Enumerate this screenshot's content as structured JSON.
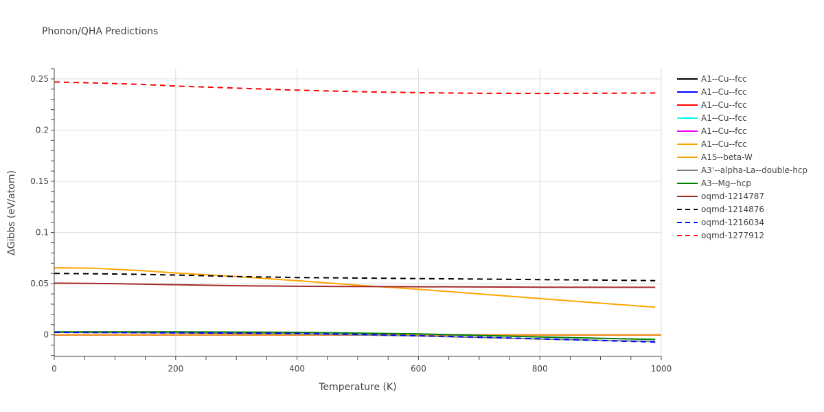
{
  "chart_data": {
    "type": "line",
    "title": "Phonon/QHA Predictions",
    "xlabel": "Temperature (K)",
    "ylabel": "ΔGibbs (eV/atom)",
    "xlim": [
      0,
      1000
    ],
    "ylim": [
      -0.021,
      0.26
    ],
    "xticks": [
      0,
      200,
      400,
      600,
      800,
      1000
    ],
    "xtick_labels": [
      "0",
      "200",
      "400",
      "600",
      "800",
      "1000"
    ],
    "yticks": [
      0,
      0.05,
      0.1,
      0.15,
      0.2,
      0.25
    ],
    "ytick_labels": [
      "0",
      "0.05",
      "0.1",
      "0.15",
      "0.2",
      "0.25"
    ],
    "grid": true,
    "legend_position": "right",
    "series": [
      {
        "name": "A1--Cu--fcc",
        "color": "#000000",
        "dash": "solid",
        "x": [
          0,
          1000
        ],
        "y": [
          0,
          0
        ]
      },
      {
        "name": "A1--Cu--fcc",
        "color": "#0000ff",
        "dash": "solid",
        "x": [
          0,
          1000
        ],
        "y": [
          0,
          0
        ]
      },
      {
        "name": "A1--Cu--fcc",
        "color": "#ff0000",
        "dash": "solid",
        "x": [
          0,
          1000
        ],
        "y": [
          0,
          0
        ]
      },
      {
        "name": "A1--Cu--fcc",
        "color": "#00ffff",
        "dash": "solid",
        "x": [
          0,
          1000
        ],
        "y": [
          0,
          0
        ]
      },
      {
        "name": "A1--Cu--fcc",
        "color": "#ff00ff",
        "dash": "solid",
        "x": [
          0,
          1000
        ],
        "y": [
          0,
          0
        ]
      },
      {
        "name": "A1--Cu--fcc",
        "color": "#ffa500",
        "dash": "solid",
        "x": [
          0,
          1000
        ],
        "y": [
          0,
          0
        ]
      },
      {
        "name": "A15--beta-W",
        "color": "#ffa500",
        "dash": "solid",
        "x": [
          0,
          70,
          150,
          200,
          300,
          400,
          500,
          600,
          700,
          800,
          900,
          990
        ],
        "y": [
          0.0655,
          0.065,
          0.0625,
          0.0605,
          0.057,
          0.053,
          0.0485,
          0.0445,
          0.04,
          0.0355,
          0.031,
          0.027
        ]
      },
      {
        "name": "A3'--alpha-La--double-hcp",
        "color": "#808080",
        "dash": "solid",
        "x": [
          0,
          200,
          400,
          600,
          800,
          990
        ],
        "y": [
          0.0025,
          0.002,
          0.001,
          -0.001,
          -0.004,
          -0.0065
        ]
      },
      {
        "name": "A3--Mg--hcp",
        "color": "#008000",
        "dash": "solid",
        "x": [
          0,
          200,
          400,
          600,
          800,
          990
        ],
        "y": [
          0.003,
          0.003,
          0.0025,
          0.001,
          -0.002,
          -0.0045
        ]
      },
      {
        "name": "oqmd-1214787",
        "color": "#a52a2a",
        "dash": "solid",
        "x": [
          0,
          100,
          200,
          300,
          400,
          500,
          600,
          700,
          800,
          900,
          990
        ],
        "y": [
          0.0505,
          0.05,
          0.049,
          0.048,
          0.0475,
          0.0472,
          0.047,
          0.0468,
          0.0466,
          0.0465,
          0.0465
        ]
      },
      {
        "name": "oqmd-1214876",
        "color": "#000000",
        "dash": "dash",
        "x": [
          0,
          100,
          200,
          300,
          400,
          500,
          600,
          700,
          800,
          900,
          990
        ],
        "y": [
          0.06,
          0.0595,
          0.0585,
          0.057,
          0.056,
          0.0555,
          0.055,
          0.0545,
          0.054,
          0.0535,
          0.053
        ]
      },
      {
        "name": "oqmd-1216034",
        "color": "#0000ff",
        "dash": "dash",
        "x": [
          0,
          200,
          400,
          500,
          600,
          700,
          800,
          900,
          990
        ],
        "y": [
          0.0025,
          0.002,
          0.0015,
          0.0005,
          -0.0008,
          -0.0022,
          -0.0038,
          -0.0055,
          -0.007
        ]
      },
      {
        "name": "oqmd-1277912",
        "color": "#ff0000",
        "dash": "dash",
        "x": [
          0,
          70,
          150,
          200,
          300,
          400,
          500,
          600,
          700,
          800,
          900,
          990
        ],
        "y": [
          0.247,
          0.246,
          0.2445,
          0.243,
          0.241,
          0.239,
          0.2375,
          0.2365,
          0.236,
          0.2358,
          0.236,
          0.2362
        ]
      }
    ]
  }
}
